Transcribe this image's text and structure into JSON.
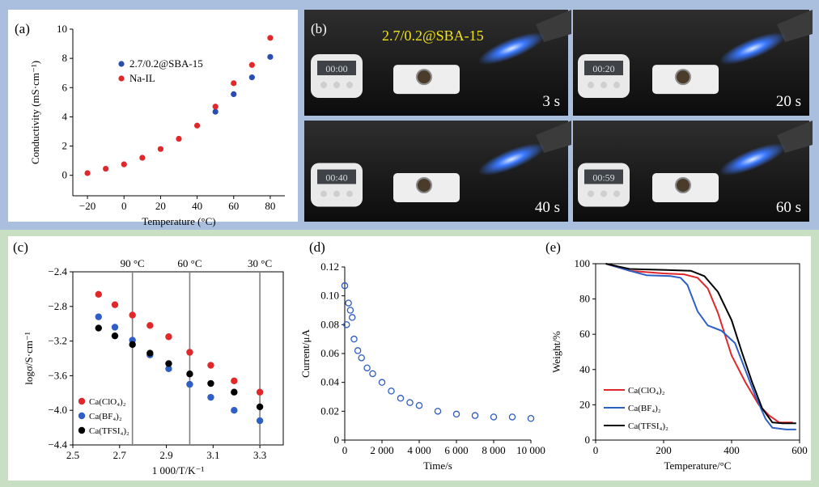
{
  "panel_labels": {
    "a": "(a)",
    "b": "(b)",
    "c": "(c)",
    "d": "(d)",
    "e": "(e)"
  },
  "photos": {
    "overlay_label": "2.7/0.2@SBA-15",
    "frames": [
      {
        "time": "3 s",
        "display": "00:00"
      },
      {
        "time": "20 s",
        "display": "00:20"
      },
      {
        "time": "40 s",
        "display": "00:40"
      },
      {
        "time": "60 s",
        "display": "00:59"
      }
    ]
  },
  "chart_data": [
    {
      "id": "a",
      "type": "scatter",
      "xlabel": "Temperature (°C)",
      "ylabel": "Conductivity (mS·cm⁻¹)",
      "xlim": [
        -28,
        88
      ],
      "ylim": [
        -1.4,
        10
      ],
      "xticks": [
        -20,
        0,
        20,
        40,
        60,
        80
      ],
      "xtick_labels": [
        "−20",
        "0",
        "20",
        "40",
        "60",
        "80"
      ],
      "yticks": [
        0,
        2,
        4,
        6,
        8,
        10
      ],
      "legend_position": "top-left",
      "series": [
        {
          "name": "2.7/0.2@SBA-15",
          "color": "#2a4db0",
          "x": [
            50,
            60,
            70,
            80
          ],
          "y": [
            4.35,
            5.55,
            6.7,
            8.1
          ]
        },
        {
          "name": "Na-IL",
          "color": "#e0282b",
          "x": [
            -20,
            -10,
            0,
            10,
            20,
            30,
            40,
            50,
            60,
            70,
            80
          ],
          "y": [
            0.15,
            0.45,
            0.75,
            1.2,
            1.8,
            2.5,
            3.4,
            4.7,
            6.3,
            7.55,
            9.4
          ]
        }
      ]
    },
    {
      "id": "c",
      "type": "scatter",
      "xlabel": "1 000/T/K⁻¹",
      "ylabel": "logσ/S·cm⁻¹",
      "xlim": [
        2.5,
        3.4
      ],
      "ylim": [
        -4.4,
        -2.4
      ],
      "xticks": [
        2.5,
        2.7,
        2.9,
        3.1,
        3.3
      ],
      "yticks": [
        -2.4,
        -2.8,
        -3.2,
        -3.6,
        -4.0,
        -4.4
      ],
      "ytick_labels": [
        "−2.4",
        "−2.8",
        "−3.2",
        "−3.6",
        "−4.0",
        "−4.4"
      ],
      "reference_lines": [
        {
          "x": 2.755,
          "label": "90 °C"
        },
        {
          "x": 3.0,
          "label": "60 °C"
        },
        {
          "x": 3.3,
          "label": "30 °C"
        }
      ],
      "legend_position": "bottom-left",
      "series": [
        {
          "name": "Ca(ClO₄)₂",
          "color": "#e0282b",
          "x": [
            2.61,
            2.68,
            2.755,
            2.83,
            2.91,
            3.0,
            3.09,
            3.19,
            3.3
          ],
          "y": [
            -2.66,
            -2.78,
            -2.9,
            -3.02,
            -3.15,
            -3.33,
            -3.48,
            -3.66,
            -3.79
          ]
        },
        {
          "name": "Ca(BF₄)₂",
          "color": "#2f5fc4",
          "x": [
            2.61,
            2.68,
            2.755,
            2.83,
            2.91,
            3.0,
            3.09,
            3.19,
            3.3
          ],
          "y": [
            -2.92,
            -3.04,
            -3.19,
            -3.36,
            -3.52,
            -3.7,
            -3.85,
            -4.0,
            -4.12
          ]
        },
        {
          "name": "Ca(TFSI₄)₂",
          "color": "#000000",
          "x": [
            2.61,
            2.68,
            2.755,
            2.83,
            2.91,
            3.0,
            3.09,
            3.19,
            3.3
          ],
          "y": [
            -3.05,
            -3.14,
            -3.24,
            -3.34,
            -3.46,
            -3.58,
            -3.69,
            -3.79,
            -3.96
          ]
        }
      ]
    },
    {
      "id": "d",
      "type": "scatter",
      "xlabel": "Time/s",
      "ylabel": "Current/μA",
      "xlim": [
        0,
        10000
      ],
      "ylim": [
        0,
        0.12
      ],
      "xticks": [
        0,
        2000,
        4000,
        6000,
        8000,
        10000
      ],
      "xtick_labels": [
        "0",
        "2 000",
        "4 000",
        "6 000",
        "8 000",
        "10 000"
      ],
      "yticks": [
        0,
        0.02,
        0.04,
        0.06,
        0.08,
        0.1,
        0.12
      ],
      "ytick_labels": [
        "0",
        "0.02",
        "0.04",
        "0.06",
        "0.08",
        "0.10",
        "0.12"
      ],
      "series": [
        {
          "color": "#2e5cc0",
          "x": [
            0,
            100,
            200,
            300,
            400,
            500,
            700,
            900,
            1200,
            1500,
            2000,
            2500,
            3000,
            3500,
            4000,
            5000,
            6000,
            7000,
            8000,
            9000,
            10000
          ],
          "y": [
            0.107,
            0.08,
            0.095,
            0.09,
            0.085,
            0.07,
            0.062,
            0.057,
            0.05,
            0.046,
            0.04,
            0.034,
            0.029,
            0.026,
            0.024,
            0.02,
            0.018,
            0.017,
            0.016,
            0.016,
            0.015
          ]
        }
      ]
    },
    {
      "id": "e",
      "type": "line",
      "xlabel": "Temperature/°C",
      "ylabel": "Weight/%",
      "xlim": [
        0,
        600
      ],
      "ylim": [
        0,
        100
      ],
      "xticks": [
        0,
        200,
        400,
        600
      ],
      "yticks": [
        0,
        20,
        40,
        60,
        80,
        100
      ],
      "legend_position": "bottom-left",
      "series": [
        {
          "name": "Ca(ClO₄)₂",
          "color": "#e0282b",
          "x": [
            30,
            100,
            200,
            260,
            300,
            330,
            360,
            400,
            440,
            480,
            510,
            540,
            580
          ],
          "y": [
            100,
            96,
            94.5,
            94,
            92,
            86,
            72,
            48,
            33,
            20,
            14,
            10,
            10
          ]
        },
        {
          "name": "Ca(BF₄)₂",
          "color": "#2f5fc4",
          "x": [
            30,
            100,
            150,
            220,
            250,
            270,
            300,
            330,
            370,
            410,
            440,
            470,
            500,
            520,
            560,
            590
          ],
          "y": [
            100,
            96,
            93.5,
            93,
            92,
            88,
            73,
            65,
            62,
            55,
            40,
            25,
            12,
            7,
            6,
            6
          ]
        },
        {
          "name": "Ca(TFSI₄)₂",
          "color": "#000000",
          "x": [
            30,
            100,
            200,
            280,
            320,
            360,
            400,
            430,
            460,
            490,
            520,
            550,
            590
          ],
          "y": [
            100,
            97,
            96.5,
            96,
            93,
            84,
            68,
            50,
            33,
            18,
            10,
            9.5,
            9.5
          ]
        }
      ]
    }
  ]
}
